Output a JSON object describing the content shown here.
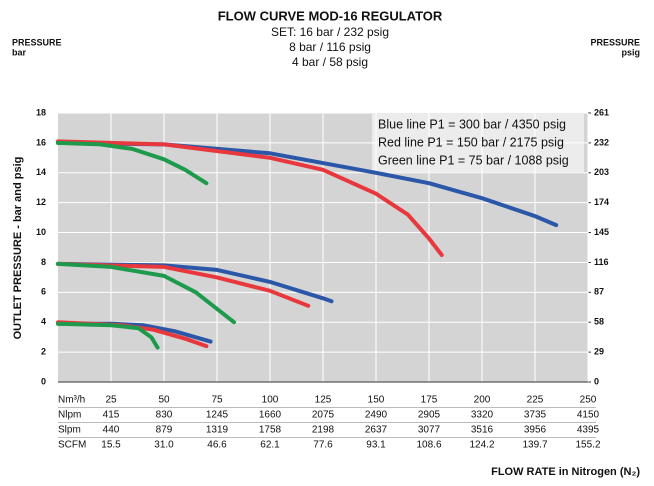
{
  "chart_data": {
    "type": "line",
    "title": "FLOW CURVE MOD-16 REGULATOR",
    "subtitle": [
      "SET: 16 bar / 232 psig",
      "8 bar / 116 psig",
      "4 bar / 58 psig"
    ],
    "left_axis_header": [
      "PRESSURE",
      "bar"
    ],
    "right_axis_header": [
      "PRESSURE",
      "psig"
    ],
    "ylabel": "OUTLET PRESSURE - bar and psig",
    "xlabel": "FLOW RATE in Nitrogen (N₂)",
    "xlim": [
      0,
      250
    ],
    "xticks": [
      25,
      50,
      75,
      100,
      125,
      150,
      175,
      200,
      225,
      250
    ],
    "ylim": [
      0,
      18
    ],
    "yticks": [
      0,
      2,
      4,
      6,
      8,
      10,
      12,
      14,
      16,
      18
    ],
    "y2lim": [
      0,
      261
    ],
    "y2ticks": [
      0,
      29,
      58,
      87,
      116,
      145,
      174,
      203,
      232,
      261
    ],
    "grid": true,
    "series": [
      {
        "name": "Blue line P1 = 300 bar / 4350 psig",
        "color": "#2b57a8",
        "curves": [
          {
            "x": [
              0,
              50,
              100,
              150,
              175,
              200,
              225,
              235
            ],
            "values": [
              16.0,
              15.9,
              15.3,
              14.0,
              13.3,
              12.3,
              11.1,
              10.5
            ]
          },
          {
            "x": [
              0,
              50,
              75,
              100,
              125,
              129
            ],
            "values": [
              7.9,
              7.8,
              7.5,
              6.7,
              5.6,
              5.4
            ]
          },
          {
            "x": [
              0,
              25,
              40,
              55,
              72
            ],
            "values": [
              3.9,
              3.9,
              3.8,
              3.4,
              2.7
            ]
          }
        ]
      },
      {
        "name": "Red line P1 = 150 bar / 2175 psig",
        "color": "#e8383d",
        "curves": [
          {
            "x": [
              0,
              50,
              100,
              125,
              150,
              165,
              175,
              181
            ],
            "values": [
              16.1,
              15.9,
              15.0,
              14.2,
              12.6,
              11.2,
              9.6,
              8.5
            ]
          },
          {
            "x": [
              0,
              50,
              75,
              100,
              118
            ],
            "values": [
              7.9,
              7.7,
              7.0,
              6.1,
              5.1
            ]
          },
          {
            "x": [
              0,
              30,
              45,
              60,
              70
            ],
            "values": [
              4.0,
              3.8,
              3.5,
              2.9,
              2.4
            ]
          }
        ]
      },
      {
        "name": "Green line P1 = 75 bar / 1088 psig",
        "color": "#1e9a4c",
        "curves": [
          {
            "x": [
              0,
              20,
              35,
              50,
              60,
              70
            ],
            "values": [
              16.0,
              15.9,
              15.6,
              14.9,
              14.2,
              13.3
            ]
          },
          {
            "x": [
              0,
              25,
              50,
              65,
              83
            ],
            "values": [
              7.9,
              7.7,
              7.1,
              6.0,
              4.0
            ]
          },
          {
            "x": [
              0,
              25,
              38,
              44,
              47
            ],
            "values": [
              3.9,
              3.8,
              3.6,
              3.0,
              2.3
            ]
          }
        ]
      }
    ],
    "table": {
      "header": "Nm³/h",
      "rows": [
        {
          "label": "Nlpm",
          "values": [
            "415",
            "830",
            "1245",
            "1660",
            "2075",
            "2490",
            "2905",
            "3320",
            "3735",
            "4150"
          ]
        },
        {
          "label": "Slpm",
          "values": [
            "440",
            "879",
            "1319",
            "1758",
            "2198",
            "2637",
            "3077",
            "3516",
            "3956",
            "4395"
          ]
        },
        {
          "label": "SCFM",
          "values": [
            "15.5",
            "31.0",
            "46.6",
            "62.1",
            "77.6",
            "93.1",
            "108.6",
            "124.2",
            "139.7",
            "155.2"
          ]
        }
      ]
    }
  }
}
